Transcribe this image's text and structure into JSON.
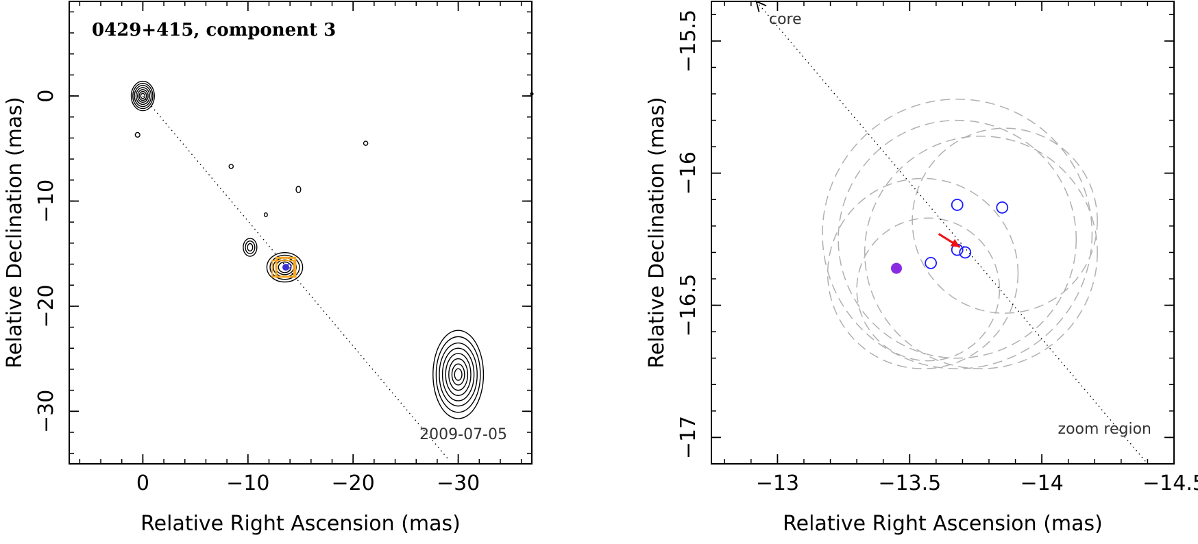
{
  "chart_data": [
    {
      "type": "contour_map",
      "title": "0429+415, component 3",
      "xlabel": "Relative Right Ascension (mas)",
      "ylabel": "Relative Declination (mas)",
      "xlim": [
        7,
        -37
      ],
      "ylim": [
        -35,
        9
      ],
      "xticks": [
        0,
        -10,
        -20,
        -30
      ],
      "yticks": [
        0,
        -10,
        -20,
        -30
      ],
      "xtick_labels": [
        "0",
        "−10",
        "−20",
        "−30"
      ],
      "ytick_labels": [
        "0",
        "−10",
        "−20",
        "−30"
      ],
      "date_label": "2009-07-05",
      "colors": {
        "contour": "#000000",
        "box": "#f5a623",
        "marker": "#3a2fd0",
        "line": "#000000"
      },
      "jet_line": {
        "x": [
          0,
          -29
        ],
        "y": [
          0,
          -34.5
        ]
      },
      "contour_sources": [
        {
          "name": "core",
          "x": 0,
          "y": 0,
          "rx": [
            1.1,
            0.95,
            0.8,
            0.65,
            0.5,
            0.35,
            0.2
          ],
          "ry": [
            1.4,
            1.2,
            1.0,
            0.8,
            0.6,
            0.42,
            0.24
          ]
        },
        {
          "name": "comp3",
          "x": -13.5,
          "y": -16.3,
          "rx": [
            1.7,
            1.4,
            1.1,
            0.85,
            0.6
          ],
          "ry": [
            1.4,
            1.15,
            0.9,
            0.7,
            0.5
          ]
        },
        {
          "name": "knot-10",
          "x": -10.2,
          "y": -14.4,
          "rx": [
            0.65,
            0.45,
            0.25
          ],
          "ry": [
            0.85,
            0.6,
            0.35
          ]
        },
        {
          "name": "outer",
          "x": -30,
          "y": -26.5,
          "rx": [
            2.4,
            2.1,
            1.8,
            1.5,
            1.2,
            0.9,
            0.6,
            0.35
          ],
          "ry": [
            4.2,
            3.6,
            3.0,
            2.5,
            2.0,
            1.5,
            1.0,
            0.55
          ]
        },
        {
          "name": "speck-1",
          "x": 0.5,
          "y": -3.7,
          "rx": [
            0.22
          ],
          "ry": [
            0.22
          ]
        },
        {
          "name": "speck-2",
          "x": -21.2,
          "y": -4.5,
          "rx": [
            0.2
          ],
          "ry": [
            0.2
          ]
        },
        {
          "name": "speck-3",
          "x": -8.4,
          "y": -6.7,
          "rx": [
            0.2
          ],
          "ry": [
            0.2
          ]
        },
        {
          "name": "speck-4",
          "x": -14.8,
          "y": -8.9,
          "rx": [
            0.22
          ],
          "ry": [
            0.3
          ]
        },
        {
          "name": "speck-5",
          "x": -11.7,
          "y": -11.3,
          "rx": [
            0.15
          ],
          "ry": [
            0.18
          ]
        },
        {
          "name": "speck-6",
          "x": -37,
          "y": 0.2,
          "rx": [
            0.12
          ],
          "ry": [
            0.12
          ]
        }
      ],
      "zoom_box": {
        "x": -13.6,
        "y": -16.3,
        "w": 1.8,
        "h": 1.8
      }
    },
    {
      "type": "scatter",
      "xlabel": "Relative Right Ascension (mas)",
      "ylabel": "Relative Declination (mas)",
      "xlim": [
        -12.75,
        -14.5
      ],
      "ylim": [
        -17.1,
        -15.35
      ],
      "xticks": [
        -13,
        -13.5,
        -14,
        -14.5
      ],
      "yticks": [
        -15.5,
        -16,
        -16.5,
        -17
      ],
      "xtick_labels": [
        "−13",
        "−13.5",
        "−14",
        "−14.5"
      ],
      "ytick_labels": [
        "−15.5",
        "−16",
        "−16.5",
        "−17"
      ],
      "labels": {
        "core": "core",
        "zoom": "zoom region"
      },
      "colors": {
        "open": "#1a1aff",
        "filled": "#8a2be2",
        "arrow": "#ee1111",
        "circle": "#b0b0b0"
      },
      "open_points": [
        {
          "x": -13.68,
          "y": -16.12
        },
        {
          "x": -13.85,
          "y": -16.13
        },
        {
          "x": -13.68,
          "y": -16.29
        },
        {
          "x": -13.71,
          "y": -16.3
        },
        {
          "x": -13.58,
          "y": -16.34
        }
      ],
      "filled_points": [
        {
          "x": -13.45,
          "y": -16.36
        }
      ],
      "arrow": {
        "x0": -13.61,
        "y0": -16.23,
        "x1": -13.69,
        "y1": -16.28
      },
      "line": {
        "x0": -12.92,
        "y0": -15.35,
        "x1": -14.4,
        "y1": -17.1
      },
      "circles": [
        {
          "x": -13.68,
          "y": -16.23,
          "r": 0.51
        },
        {
          "x": -13.68,
          "y": -16.25,
          "r": 0.45
        },
        {
          "x": -13.77,
          "y": -16.3,
          "r": 0.44
        },
        {
          "x": -13.55,
          "y": -16.38,
          "r": 0.36
        },
        {
          "x": -13.86,
          "y": -16.18,
          "r": 0.35
        },
        {
          "x": -13.57,
          "y": -16.44,
          "r": 0.27
        }
      ]
    }
  ]
}
